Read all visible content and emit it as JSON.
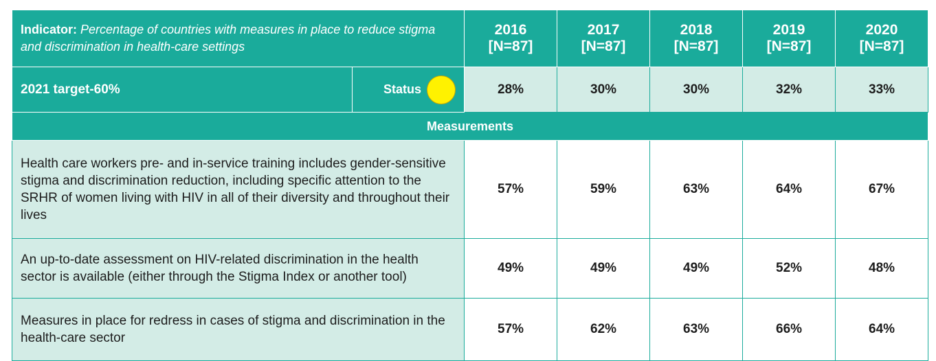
{
  "header": {
    "indicator_label": "Indicator:",
    "indicator_text": "Percentage of countries with measures in place to reduce stigma and discrimination in health-care settings",
    "years": [
      {
        "year": "2016",
        "n": "[N=87]"
      },
      {
        "year": "2017",
        "n": "[N=87]"
      },
      {
        "year": "2018",
        "n": "[N=87]"
      },
      {
        "year": "2019",
        "n": "[N=87]"
      },
      {
        "year": "2020",
        "n": "[N=87]"
      }
    ]
  },
  "target_row": {
    "target": "2021 target-60%",
    "status_label": "Status",
    "values": [
      "28%",
      "30%",
      "30%",
      "32%",
      "33%"
    ]
  },
  "section": "Measurements",
  "rows": [
    {
      "label": "Health care workers pre- and in-service training includes gender-sensitive stigma and discrimination reduction, including specific attention to the SRHR of women living with HIV in all of their diversity and throughout their lives",
      "values": [
        "57%",
        "59%",
        "63%",
        "64%",
        "67%"
      ]
    },
    {
      "label": "An up-to-date assessment on HIV-related discrimination in the health sector is available (either through the Stigma Index or another tool)",
      "values": [
        "49%",
        "49%",
        "49%",
        "52%",
        "48%"
      ]
    },
    {
      "label": "Measures in place for redress in cases of stigma and discrimination in the health-care sector",
      "values": [
        "57%",
        "62%",
        "63%",
        "66%",
        "64%"
      ]
    }
  ]
}
